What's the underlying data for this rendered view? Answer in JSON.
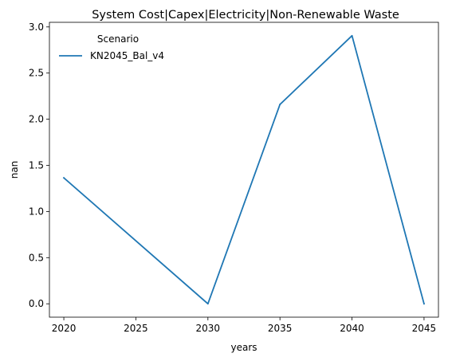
{
  "chart_data": {
    "type": "line",
    "title": "System Cost|Capex|Electricity|Non-Renewable Waste",
    "xlabel": "years",
    "ylabel": "nan",
    "x": [
      2020,
      2030,
      2035,
      2040,
      2045
    ],
    "xlim": [
      2019,
      2046
    ],
    "ylim": [
      -0.145,
      3.05
    ],
    "xticks": [
      2020,
      2025,
      2030,
      2035,
      2040,
      2045
    ],
    "yticks": [
      0.0,
      0.5,
      1.0,
      1.5,
      2.0,
      2.5,
      3.0
    ],
    "ytick_labels": [
      "0.0",
      "0.5",
      "1.0",
      "1.5",
      "2.0",
      "2.5",
      "3.0"
    ],
    "grid": false,
    "legend": {
      "title": "Scenario",
      "position": "top-left"
    },
    "series": [
      {
        "name": "KN2045_Bal_v4",
        "color": "#1f77b4",
        "values": [
          1.365,
          0.0,
          2.16,
          2.905,
          0.0
        ]
      }
    ]
  }
}
